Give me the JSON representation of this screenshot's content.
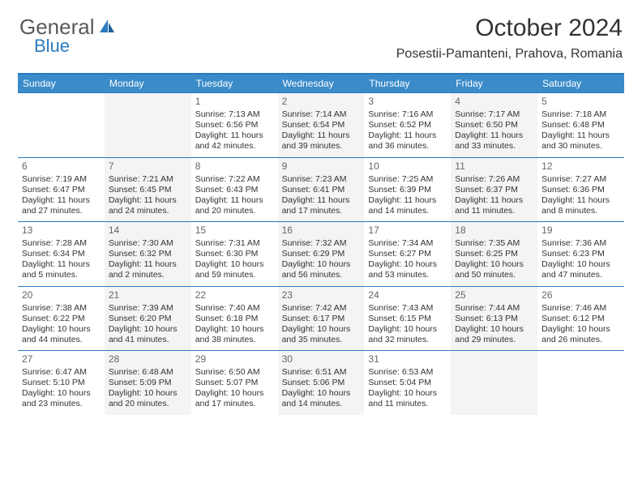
{
  "logo": {
    "general": "General",
    "blue": "Blue"
  },
  "title": "October 2024",
  "location": "Posestii-Pamanteni, Prahova, Romania",
  "colors": {
    "header_bg": "#3b8bc9",
    "border": "#2b7bbf",
    "alt_cell_bg": "#f4f4f4",
    "text": "#333333",
    "daynum": "#666666",
    "logo_gray": "#5a5a5a",
    "logo_blue": "#2b7bbf"
  },
  "day_labels": [
    "Sunday",
    "Monday",
    "Tuesday",
    "Wednesday",
    "Thursday",
    "Friday",
    "Saturday"
  ],
  "weeks": [
    [
      null,
      null,
      {
        "n": "1",
        "sr": "Sunrise: 7:13 AM",
        "ss": "Sunset: 6:56 PM",
        "dl": "Daylight: 11 hours and 42 minutes."
      },
      {
        "n": "2",
        "sr": "Sunrise: 7:14 AM",
        "ss": "Sunset: 6:54 PM",
        "dl": "Daylight: 11 hours and 39 minutes."
      },
      {
        "n": "3",
        "sr": "Sunrise: 7:16 AM",
        "ss": "Sunset: 6:52 PM",
        "dl": "Daylight: 11 hours and 36 minutes."
      },
      {
        "n": "4",
        "sr": "Sunrise: 7:17 AM",
        "ss": "Sunset: 6:50 PM",
        "dl": "Daylight: 11 hours and 33 minutes."
      },
      {
        "n": "5",
        "sr": "Sunrise: 7:18 AM",
        "ss": "Sunset: 6:48 PM",
        "dl": "Daylight: 11 hours and 30 minutes."
      }
    ],
    [
      {
        "n": "6",
        "sr": "Sunrise: 7:19 AM",
        "ss": "Sunset: 6:47 PM",
        "dl": "Daylight: 11 hours and 27 minutes."
      },
      {
        "n": "7",
        "sr": "Sunrise: 7:21 AM",
        "ss": "Sunset: 6:45 PM",
        "dl": "Daylight: 11 hours and 24 minutes."
      },
      {
        "n": "8",
        "sr": "Sunrise: 7:22 AM",
        "ss": "Sunset: 6:43 PM",
        "dl": "Daylight: 11 hours and 20 minutes."
      },
      {
        "n": "9",
        "sr": "Sunrise: 7:23 AM",
        "ss": "Sunset: 6:41 PM",
        "dl": "Daylight: 11 hours and 17 minutes."
      },
      {
        "n": "10",
        "sr": "Sunrise: 7:25 AM",
        "ss": "Sunset: 6:39 PM",
        "dl": "Daylight: 11 hours and 14 minutes."
      },
      {
        "n": "11",
        "sr": "Sunrise: 7:26 AM",
        "ss": "Sunset: 6:37 PM",
        "dl": "Daylight: 11 hours and 11 minutes."
      },
      {
        "n": "12",
        "sr": "Sunrise: 7:27 AM",
        "ss": "Sunset: 6:36 PM",
        "dl": "Daylight: 11 hours and 8 minutes."
      }
    ],
    [
      {
        "n": "13",
        "sr": "Sunrise: 7:28 AM",
        "ss": "Sunset: 6:34 PM",
        "dl": "Daylight: 11 hours and 5 minutes."
      },
      {
        "n": "14",
        "sr": "Sunrise: 7:30 AM",
        "ss": "Sunset: 6:32 PM",
        "dl": "Daylight: 11 hours and 2 minutes."
      },
      {
        "n": "15",
        "sr": "Sunrise: 7:31 AM",
        "ss": "Sunset: 6:30 PM",
        "dl": "Daylight: 10 hours and 59 minutes."
      },
      {
        "n": "16",
        "sr": "Sunrise: 7:32 AM",
        "ss": "Sunset: 6:29 PM",
        "dl": "Daylight: 10 hours and 56 minutes."
      },
      {
        "n": "17",
        "sr": "Sunrise: 7:34 AM",
        "ss": "Sunset: 6:27 PM",
        "dl": "Daylight: 10 hours and 53 minutes."
      },
      {
        "n": "18",
        "sr": "Sunrise: 7:35 AM",
        "ss": "Sunset: 6:25 PM",
        "dl": "Daylight: 10 hours and 50 minutes."
      },
      {
        "n": "19",
        "sr": "Sunrise: 7:36 AM",
        "ss": "Sunset: 6:23 PM",
        "dl": "Daylight: 10 hours and 47 minutes."
      }
    ],
    [
      {
        "n": "20",
        "sr": "Sunrise: 7:38 AM",
        "ss": "Sunset: 6:22 PM",
        "dl": "Daylight: 10 hours and 44 minutes."
      },
      {
        "n": "21",
        "sr": "Sunrise: 7:39 AM",
        "ss": "Sunset: 6:20 PM",
        "dl": "Daylight: 10 hours and 41 minutes."
      },
      {
        "n": "22",
        "sr": "Sunrise: 7:40 AM",
        "ss": "Sunset: 6:18 PM",
        "dl": "Daylight: 10 hours and 38 minutes."
      },
      {
        "n": "23",
        "sr": "Sunrise: 7:42 AM",
        "ss": "Sunset: 6:17 PM",
        "dl": "Daylight: 10 hours and 35 minutes."
      },
      {
        "n": "24",
        "sr": "Sunrise: 7:43 AM",
        "ss": "Sunset: 6:15 PM",
        "dl": "Daylight: 10 hours and 32 minutes."
      },
      {
        "n": "25",
        "sr": "Sunrise: 7:44 AM",
        "ss": "Sunset: 6:13 PM",
        "dl": "Daylight: 10 hours and 29 minutes."
      },
      {
        "n": "26",
        "sr": "Sunrise: 7:46 AM",
        "ss": "Sunset: 6:12 PM",
        "dl": "Daylight: 10 hours and 26 minutes."
      }
    ],
    [
      {
        "n": "27",
        "sr": "Sunrise: 6:47 AM",
        "ss": "Sunset: 5:10 PM",
        "dl": "Daylight: 10 hours and 23 minutes."
      },
      {
        "n": "28",
        "sr": "Sunrise: 6:48 AM",
        "ss": "Sunset: 5:09 PM",
        "dl": "Daylight: 10 hours and 20 minutes."
      },
      {
        "n": "29",
        "sr": "Sunrise: 6:50 AM",
        "ss": "Sunset: 5:07 PM",
        "dl": "Daylight: 10 hours and 17 minutes."
      },
      {
        "n": "30",
        "sr": "Sunrise: 6:51 AM",
        "ss": "Sunset: 5:06 PM",
        "dl": "Daylight: 10 hours and 14 minutes."
      },
      {
        "n": "31",
        "sr": "Sunrise: 6:53 AM",
        "ss": "Sunset: 5:04 PM",
        "dl": "Daylight: 10 hours and 11 minutes."
      },
      null,
      null
    ]
  ]
}
